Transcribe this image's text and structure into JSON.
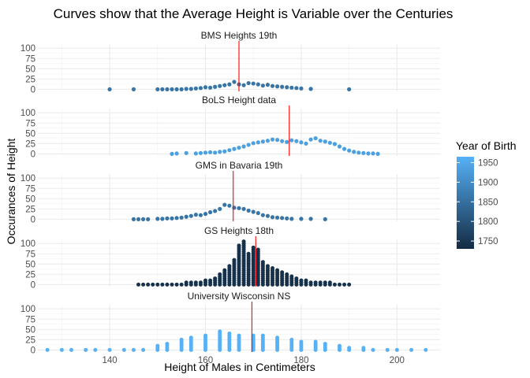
{
  "chart_data": {
    "type": "scatter",
    "title": "Curves show that the Average Height is Variable over the Centuries",
    "xlabel": "Height of Males in Centimeters",
    "ylabel": "Occurances of Height",
    "xlim": [
      125,
      209
    ],
    "ylim": [
      -5,
      110
    ],
    "x_ticks": [
      140,
      160,
      180,
      200
    ],
    "y_ticks": [
      0,
      25,
      50,
      75,
      100
    ],
    "grid": true,
    "legend": {
      "title": "Year of Birth",
      "position": "right",
      "type": "colorbar",
      "range": [
        1730,
        1965
      ],
      "ticks": [
        1750,
        1800,
        1850,
        1900,
        1950
      ],
      "color_low": "#132b43",
      "color_high": "#56b1f7"
    },
    "panels": [
      {
        "name": "BMS Heights 19th",
        "year": 1860,
        "mean_line": 167,
        "points": [
          [
            140,
            0
          ],
          [
            145,
            0
          ],
          [
            150,
            0
          ],
          [
            151,
            0
          ],
          [
            152,
            0
          ],
          [
            153,
            0
          ],
          [
            154,
            0
          ],
          [
            155,
            0
          ],
          [
            156,
            1
          ],
          [
            157,
            1
          ],
          [
            158,
            2
          ],
          [
            159,
            3
          ],
          [
            160,
            5
          ],
          [
            161,
            4
          ],
          [
            162,
            6
          ],
          [
            163,
            8
          ],
          [
            164,
            10
          ],
          [
            165,
            12
          ],
          [
            166,
            18
          ],
          [
            167,
            12
          ],
          [
            168,
            10
          ],
          [
            169,
            15
          ],
          [
            170,
            14
          ],
          [
            171,
            12
          ],
          [
            172,
            9
          ],
          [
            173,
            11
          ],
          [
            174,
            8
          ],
          [
            175,
            7
          ],
          [
            176,
            6
          ],
          [
            177,
            5
          ],
          [
            178,
            4
          ],
          [
            179,
            3
          ],
          [
            180,
            2
          ],
          [
            182,
            1
          ],
          [
            190,
            0
          ]
        ]
      },
      {
        "name": "BoLS Height data",
        "year": 1935,
        "mean_line": 177.5,
        "points": [
          [
            153,
            0
          ],
          [
            154,
            1
          ],
          [
            156,
            2
          ],
          [
            158,
            1
          ],
          [
            159,
            2
          ],
          [
            160,
            3
          ],
          [
            161,
            4
          ],
          [
            162,
            3
          ],
          [
            163,
            5
          ],
          [
            164,
            6
          ],
          [
            165,
            9
          ],
          [
            166,
            12
          ],
          [
            167,
            15
          ],
          [
            168,
            18
          ],
          [
            169,
            22
          ],
          [
            170,
            26
          ],
          [
            171,
            28
          ],
          [
            172,
            30
          ],
          [
            173,
            32
          ],
          [
            174,
            35
          ],
          [
            175,
            34
          ],
          [
            176,
            31
          ],
          [
            177,
            29
          ],
          [
            178,
            33
          ],
          [
            179,
            31
          ],
          [
            180,
            28
          ],
          [
            181,
            25
          ],
          [
            182,
            35
          ],
          [
            183,
            38
          ],
          [
            184,
            32
          ],
          [
            185,
            30
          ],
          [
            186,
            27
          ],
          [
            187,
            24
          ],
          [
            188,
            18
          ],
          [
            189,
            12
          ],
          [
            190,
            8
          ],
          [
            191,
            5
          ],
          [
            192,
            3
          ],
          [
            193,
            2
          ],
          [
            194,
            1
          ],
          [
            195,
            1
          ],
          [
            196,
            0
          ]
        ]
      },
      {
        "name": "GMS in Bavaria 19th",
        "year": 1860,
        "mean_line": 165.8,
        "points": [
          [
            145,
            0
          ],
          [
            146,
            0
          ],
          [
            147,
            0
          ],
          [
            148,
            0
          ],
          [
            150,
            1
          ],
          [
            151,
            1
          ],
          [
            152,
            2
          ],
          [
            153,
            2
          ],
          [
            154,
            3
          ],
          [
            155,
            4
          ],
          [
            156,
            6
          ],
          [
            157,
            8
          ],
          [
            158,
            11
          ],
          [
            159,
            10
          ],
          [
            160,
            13
          ],
          [
            161,
            17
          ],
          [
            162,
            20
          ],
          [
            163,
            25
          ],
          [
            164,
            35
          ],
          [
            165,
            33
          ],
          [
            166,
            28
          ],
          [
            167,
            27
          ],
          [
            168,
            25
          ],
          [
            169,
            21
          ],
          [
            170,
            18
          ],
          [
            171,
            15
          ],
          [
            172,
            10
          ],
          [
            173,
            8
          ],
          [
            174,
            5
          ],
          [
            175,
            4
          ],
          [
            176,
            3
          ],
          [
            177,
            2
          ],
          [
            178,
            1
          ],
          [
            180,
            1
          ],
          [
            182,
            1
          ],
          [
            185,
            0
          ]
        ]
      },
      {
        "name": "GS Heights 18th",
        "year": 1740,
        "mean_line": 170.5,
        "dense": true,
        "profile": [
          [
            146,
            2
          ],
          [
            150,
            3
          ],
          [
            155,
            4
          ],
          [
            159,
            8
          ],
          [
            162,
            15
          ],
          [
            164,
            35
          ],
          [
            166,
            60
          ],
          [
            167,
            95
          ],
          [
            168,
            105
          ],
          [
            169,
            75
          ],
          [
            170,
            90
          ],
          [
            171,
            85
          ],
          [
            172,
            55
          ],
          [
            174,
            40
          ],
          [
            176,
            32
          ],
          [
            178,
            20
          ],
          [
            180,
            12
          ],
          [
            182,
            8
          ],
          [
            186,
            5
          ],
          [
            190,
            2
          ]
        ],
        "columns": [
          146,
          147,
          148,
          149,
          150,
          151,
          152,
          153,
          154,
          155,
          156,
          157,
          158,
          159,
          160,
          161,
          162,
          163,
          164,
          165,
          166,
          167,
          168,
          169,
          170,
          171,
          172,
          173,
          174,
          175,
          176,
          177,
          178,
          179,
          180,
          181,
          182,
          183,
          184,
          185,
          186,
          187,
          188,
          189,
          190
        ]
      },
      {
        "name": "University Wisconsin NS",
        "year": 1965,
        "mean_line": 169.7,
        "dense": true,
        "profile": [
          [
            127,
            1
          ],
          [
            130,
            1
          ],
          [
            132,
            1
          ],
          [
            135,
            1
          ],
          [
            137,
            1
          ],
          [
            140,
            2
          ],
          [
            143,
            2
          ],
          [
            145,
            3
          ],
          [
            147,
            4
          ],
          [
            150,
            10
          ],
          [
            152,
            15
          ],
          [
            155,
            25
          ],
          [
            157,
            30
          ],
          [
            160,
            38
          ],
          [
            163,
            45
          ],
          [
            165,
            40
          ],
          [
            167,
            35
          ],
          [
            170,
            38
          ],
          [
            172,
            35
          ],
          [
            175,
            30
          ],
          [
            178,
            28
          ],
          [
            180,
            22
          ],
          [
            183,
            20
          ],
          [
            185,
            15
          ],
          [
            188,
            10
          ],
          [
            190,
            8
          ],
          [
            193,
            5
          ],
          [
            195,
            3
          ],
          [
            198,
            2
          ],
          [
            200,
            1
          ],
          [
            203,
            1
          ],
          [
            206,
            1
          ]
        ],
        "columns": [
          127,
          130,
          132,
          135,
          137,
          140,
          143,
          145,
          147,
          150,
          152,
          155,
          157,
          160,
          163,
          165,
          167,
          170,
          172,
          175,
          178,
          180,
          183,
          185,
          188,
          190,
          193,
          195,
          198,
          200,
          203,
          206
        ]
      }
    ]
  }
}
